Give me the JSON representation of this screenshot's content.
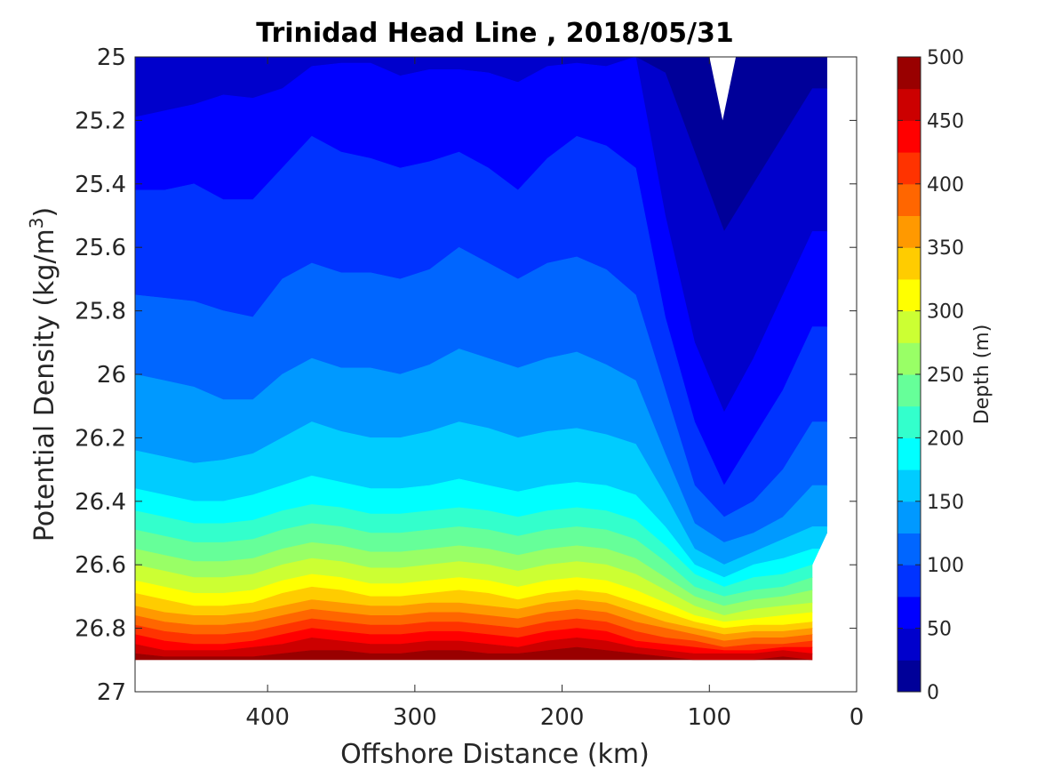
{
  "chart_data": {
    "type": "filled-contour",
    "title": "Trinidad Head Line , 2018/05/31",
    "xlabel": "Offshore Distance (km)",
    "ylabel": "Potential Density (kg/m",
    "ylabel_superscript": "3",
    "ylabel_close": ")",
    "xlim": [
      490,
      0
    ],
    "x_reversed": true,
    "ylim": [
      25,
      27
    ],
    "y_reversed": true,
    "xticks": [
      400,
      300,
      200,
      100,
      0
    ],
    "xtick_labels": [
      "400",
      "300",
      "200",
      "100",
      "0"
    ],
    "yticks": [
      25,
      25.2,
      25.4,
      25.6,
      25.8,
      26,
      26.2,
      26.4,
      26.6,
      26.8,
      27
    ],
    "ytick_labels": [
      "25",
      "25.2",
      "25.4",
      "25.6",
      "25.8",
      "26",
      "26.2",
      "26.4",
      "26.6",
      "26.8",
      "27"
    ],
    "colorbar": {
      "label": "Depth (m)",
      "range": [
        0,
        500
      ],
      "ticks": [
        0,
        50,
        100,
        150,
        200,
        250,
        300,
        350,
        400,
        450,
        500
      ],
      "tick_labels": [
        "0",
        "50",
        "100",
        "150",
        "200",
        "250",
        "300",
        "350",
        "400",
        "450",
        "500"
      ],
      "level_step": 25,
      "colormap": "jet"
    },
    "depth_levels_m": [
      25,
      50,
      75,
      100,
      125,
      150,
      175,
      200,
      225,
      250,
      275,
      300,
      325,
      350,
      375,
      400,
      425,
      450,
      475
    ],
    "x_km": [
      490,
      470,
      450,
      430,
      410,
      390,
      370,
      350,
      330,
      310,
      290,
      270,
      250,
      230,
      210,
      190,
      170,
      150,
      130,
      110,
      90,
      70,
      50,
      30
    ],
    "isopycnal_density_by_level": [
      [
        25.0,
        25.0,
        25.0,
        25.0,
        25.0,
        25.0,
        25.0,
        25.0,
        25.0,
        25.0,
        25.0,
        25.0,
        25.0,
        25.0,
        25.0,
        25.0,
        25.0,
        25.0,
        25.05,
        25.3,
        25.55,
        25.4,
        25.25,
        25.1
      ],
      [
        25.19,
        25.17,
        25.15,
        25.12,
        25.13,
        25.1,
        25.03,
        25.02,
        25.02,
        25.06,
        25.04,
        25.04,
        25.05,
        25.08,
        25.03,
        25.02,
        25.03,
        25.0,
        25.5,
        25.9,
        26.12,
        25.95,
        25.75,
        25.55
      ],
      [
        25.42,
        25.42,
        25.4,
        25.45,
        25.45,
        25.35,
        25.25,
        25.3,
        25.32,
        25.35,
        25.33,
        25.3,
        25.35,
        25.42,
        25.32,
        25.25,
        25.28,
        25.35,
        25.82,
        26.15,
        26.35,
        26.2,
        26.05,
        25.85
      ],
      [
        25.75,
        25.76,
        25.77,
        25.8,
        25.82,
        25.7,
        25.65,
        25.68,
        25.68,
        25.7,
        25.67,
        25.6,
        25.65,
        25.7,
        25.65,
        25.63,
        25.67,
        25.75,
        26.05,
        26.35,
        26.45,
        26.4,
        26.3,
        26.15
      ],
      [
        26.0,
        26.02,
        26.04,
        26.08,
        26.08,
        26.0,
        25.95,
        25.98,
        25.98,
        26.0,
        25.97,
        25.92,
        25.95,
        25.98,
        25.95,
        25.93,
        25.97,
        26.02,
        26.25,
        26.47,
        26.53,
        26.5,
        26.45,
        26.35
      ],
      [
        26.24,
        26.26,
        26.28,
        26.27,
        26.25,
        26.2,
        26.15,
        26.18,
        26.2,
        26.2,
        26.18,
        26.15,
        26.17,
        26.2,
        26.18,
        26.17,
        26.19,
        26.22,
        26.38,
        26.55,
        26.6,
        26.56,
        26.52,
        26.48
      ],
      [
        26.36,
        26.38,
        26.4,
        26.4,
        26.38,
        26.35,
        26.32,
        26.34,
        26.36,
        26.36,
        26.35,
        26.33,
        26.35,
        26.37,
        26.35,
        26.34,
        26.35,
        26.38,
        26.48,
        26.6,
        26.64,
        26.6,
        26.58,
        26.55
      ],
      [
        26.43,
        26.45,
        26.47,
        26.47,
        26.46,
        26.43,
        26.41,
        26.42,
        26.44,
        26.44,
        26.43,
        26.42,
        26.43,
        26.45,
        26.43,
        26.42,
        26.43,
        26.46,
        26.54,
        26.63,
        26.67,
        26.64,
        26.63,
        26.6
      ],
      [
        26.49,
        26.51,
        26.53,
        26.53,
        26.52,
        26.49,
        26.47,
        26.48,
        26.5,
        26.5,
        26.49,
        26.48,
        26.49,
        26.51,
        26.49,
        26.48,
        26.49,
        26.52,
        26.59,
        26.67,
        26.7,
        26.68,
        26.67,
        26.64
      ],
      [
        26.55,
        26.57,
        26.59,
        26.59,
        26.58,
        26.55,
        26.53,
        26.54,
        26.56,
        26.56,
        26.55,
        26.54,
        26.55,
        26.57,
        26.55,
        26.54,
        26.55,
        26.58,
        26.64,
        26.7,
        26.73,
        26.71,
        26.7,
        26.68
      ],
      [
        26.6,
        26.62,
        26.64,
        26.64,
        26.63,
        26.6,
        26.58,
        26.59,
        26.61,
        26.61,
        26.6,
        26.59,
        26.6,
        26.62,
        26.6,
        26.59,
        26.6,
        26.63,
        26.68,
        26.73,
        26.76,
        26.74,
        26.73,
        26.72
      ],
      [
        26.65,
        26.67,
        26.69,
        26.69,
        26.68,
        26.65,
        26.63,
        26.64,
        26.66,
        26.66,
        26.65,
        26.64,
        26.65,
        26.67,
        26.65,
        26.64,
        26.65,
        26.68,
        26.72,
        26.76,
        26.78,
        26.77,
        26.76,
        26.75
      ],
      [
        26.69,
        26.71,
        26.73,
        26.73,
        26.72,
        26.69,
        26.67,
        26.68,
        26.7,
        26.7,
        26.69,
        26.68,
        26.69,
        26.71,
        26.69,
        26.68,
        26.69,
        26.72,
        26.75,
        26.78,
        26.8,
        26.79,
        26.79,
        26.78
      ],
      [
        26.73,
        26.75,
        26.76,
        26.76,
        26.75,
        26.73,
        26.71,
        26.72,
        26.73,
        26.73,
        26.72,
        26.72,
        26.73,
        26.74,
        26.72,
        26.71,
        26.72,
        26.75,
        26.78,
        26.8,
        26.82,
        26.81,
        26.81,
        26.8
      ],
      [
        26.76,
        26.78,
        26.79,
        26.79,
        26.78,
        26.76,
        26.74,
        26.75,
        26.76,
        26.76,
        26.75,
        26.75,
        26.76,
        26.77,
        26.75,
        26.74,
        26.75,
        26.78,
        26.8,
        26.82,
        26.84,
        26.83,
        26.83,
        26.82
      ],
      [
        26.79,
        26.81,
        26.82,
        26.82,
        26.81,
        26.79,
        26.77,
        26.78,
        26.79,
        26.79,
        26.78,
        26.78,
        26.79,
        26.8,
        26.78,
        26.77,
        26.78,
        26.81,
        26.83,
        26.84,
        26.86,
        26.85,
        26.85,
        26.84
      ],
      [
        26.82,
        26.84,
        26.85,
        26.85,
        26.84,
        26.82,
        26.8,
        26.81,
        26.82,
        26.82,
        26.81,
        26.81,
        26.82,
        26.83,
        26.81,
        26.8,
        26.81,
        26.84,
        26.85,
        26.86,
        26.87,
        26.87,
        26.86,
        26.86
      ],
      [
        26.85,
        26.87,
        26.87,
        26.87,
        26.86,
        26.85,
        26.83,
        26.84,
        26.85,
        26.85,
        26.84,
        26.84,
        26.85,
        26.86,
        26.84,
        26.83,
        26.84,
        26.86,
        26.87,
        26.88,
        26.88,
        26.88,
        26.87,
        26.88
      ],
      [
        26.88,
        26.89,
        26.89,
        26.89,
        26.89,
        26.88,
        26.87,
        26.87,
        26.88,
        26.88,
        26.87,
        26.87,
        26.88,
        26.88,
        26.87,
        26.86,
        26.87,
        26.88,
        26.89,
        26.9,
        26.9,
        26.9,
        26.89,
        26.9
      ]
    ],
    "data_bottom_density": 26.9,
    "data_outline_km_density": [
      [
        490,
        25.0
      ],
      [
        20,
        25.0
      ],
      [
        20,
        26.5
      ],
      [
        30,
        26.6
      ],
      [
        30,
        26.9
      ],
      [
        490,
        26.9
      ]
    ],
    "blank_notch_km_density": [
      [
        100,
        25.0
      ],
      [
        91,
        25.2
      ],
      [
        82,
        25.0
      ]
    ],
    "colors": {
      "axis": "#262626",
      "background": "#ffffff"
    }
  }
}
